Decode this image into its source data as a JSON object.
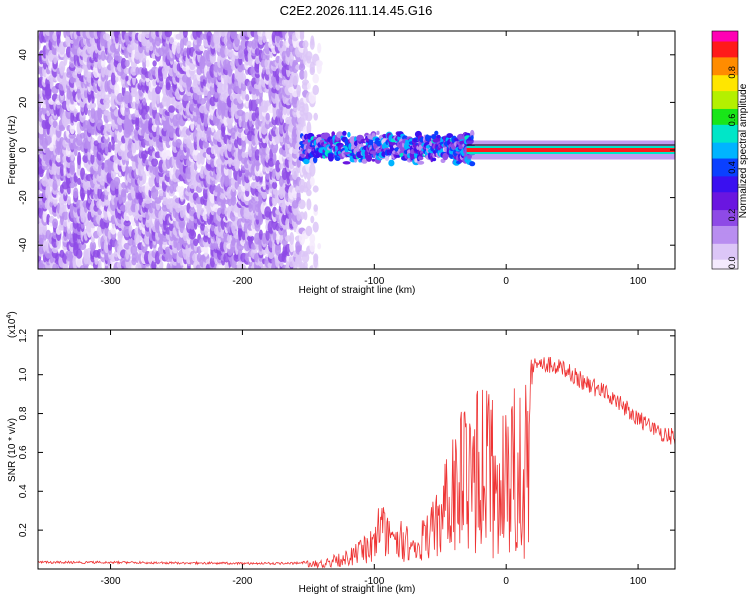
{
  "title": "C2E2.2026.111.14.45.G16",
  "colors": {
    "snr_line": "#ee3333",
    "ridge": "#ff1a1a",
    "ridge_core": "#00c8a0",
    "colormap": [
      "#f4eafd",
      "#dcc6f7",
      "#b98ef0",
      "#8e4ae6",
      "#6a16e0",
      "#3a10f0",
      "#0a40ff",
      "#00b4ff",
      "#00e6c8",
      "#19e619",
      "#b4f000",
      "#ffe600",
      "#ff8c00",
      "#ff1a1a",
      "#ff00b4"
    ]
  },
  "chart_data": [
    {
      "type": "heatmap",
      "title": "C2E2.2026.111.14.45.G16",
      "xlabel": "Height of straight line (km)",
      "ylabel": "Frequency (Hz)",
      "xlim": [
        -355,
        128
      ],
      "ylim": [
        -50,
        50
      ],
      "xticks": [
        -300,
        -200,
        -100,
        0,
        100
      ],
      "xtick_labels": [
        "-300",
        "-200",
        "-100",
        "0",
        "100"
      ],
      "yticks": [
        -40,
        -20,
        0,
        20,
        40
      ],
      "ytick_labels": [
        "-40",
        "-20",
        "0",
        "20",
        "40"
      ],
      "colorbar": {
        "label": "Normalized spectral amplitude",
        "range": [
          0,
          1
        ],
        "ticks": [
          0.0,
          0.2,
          0.4,
          0.6,
          0.8
        ],
        "tick_labels": [
          "0.0",
          "0.2",
          "0.4",
          "0.6",
          "0.8"
        ]
      },
      "regions": [
        {
          "name": "noise",
          "x_from": -355,
          "x_to": -140,
          "f_from": -50,
          "f_to": 50,
          "amplitude": [
            0.02,
            0.22
          ]
        },
        {
          "name": "band",
          "x_from": -155,
          "x_to": -25,
          "f_center": 1,
          "f_halfwidth": 7,
          "amplitude": [
            0.1,
            0.55
          ]
        },
        {
          "name": "line",
          "x_from": -30,
          "x_to": 128,
          "f_center": 0,
          "f_halfwidth": 2,
          "amplitude": [
            0.85,
            1.0
          ]
        }
      ]
    },
    {
      "type": "line",
      "xlabel": "Height of straight line (km)",
      "ylabel": "SNR (10 * v/v)",
      "y_multiplier": "(x10",
      "y_multiplier_exp": "4",
      "y_multiplier_close": ")",
      "xlim": [
        -355,
        128
      ],
      "ylim": [
        0,
        1.23
      ],
      "xticks": [
        -300,
        -200,
        -100,
        0,
        100
      ],
      "xtick_labels": [
        "-300",
        "-200",
        "-100",
        "0",
        "100"
      ],
      "yticks": [
        0.2,
        0.4,
        0.6,
        0.8,
        1.0,
        1.2
      ],
      "ytick_labels": [
        "0.2",
        "0.4",
        "0.6",
        "0.8",
        "1.0",
        "1.2"
      ],
      "series": [
        {
          "name": "SNR",
          "envelope_x": [
            -355,
            -300,
            -200,
            -160,
            -140,
            -120,
            -110,
            -100,
            -95,
            -90,
            -80,
            -70,
            -60,
            -50,
            -45,
            -40,
            -30,
            -20,
            -10,
            -5,
            0,
            5,
            10,
            15,
            20,
            30,
            40,
            50,
            60,
            70,
            80,
            90,
            100,
            110,
            120,
            128
          ],
          "envelope_y": [
            0.04,
            0.04,
            0.035,
            0.035,
            0.05,
            0.1,
            0.15,
            0.22,
            0.38,
            0.28,
            0.25,
            0.2,
            0.3,
            0.42,
            0.6,
            0.75,
            0.85,
            0.95,
            0.9,
            0.7,
            0.9,
            1.0,
            0.95,
            1.05,
            1.1,
            1.1,
            1.08,
            1.05,
            1.0,
            0.97,
            0.93,
            0.88,
            0.82,
            0.77,
            0.74,
            0.72
          ],
          "notch_x": [
            -5,
            10
          ],
          "notch_y": [
            0.15,
            0.25
          ]
        }
      ]
    }
  ]
}
